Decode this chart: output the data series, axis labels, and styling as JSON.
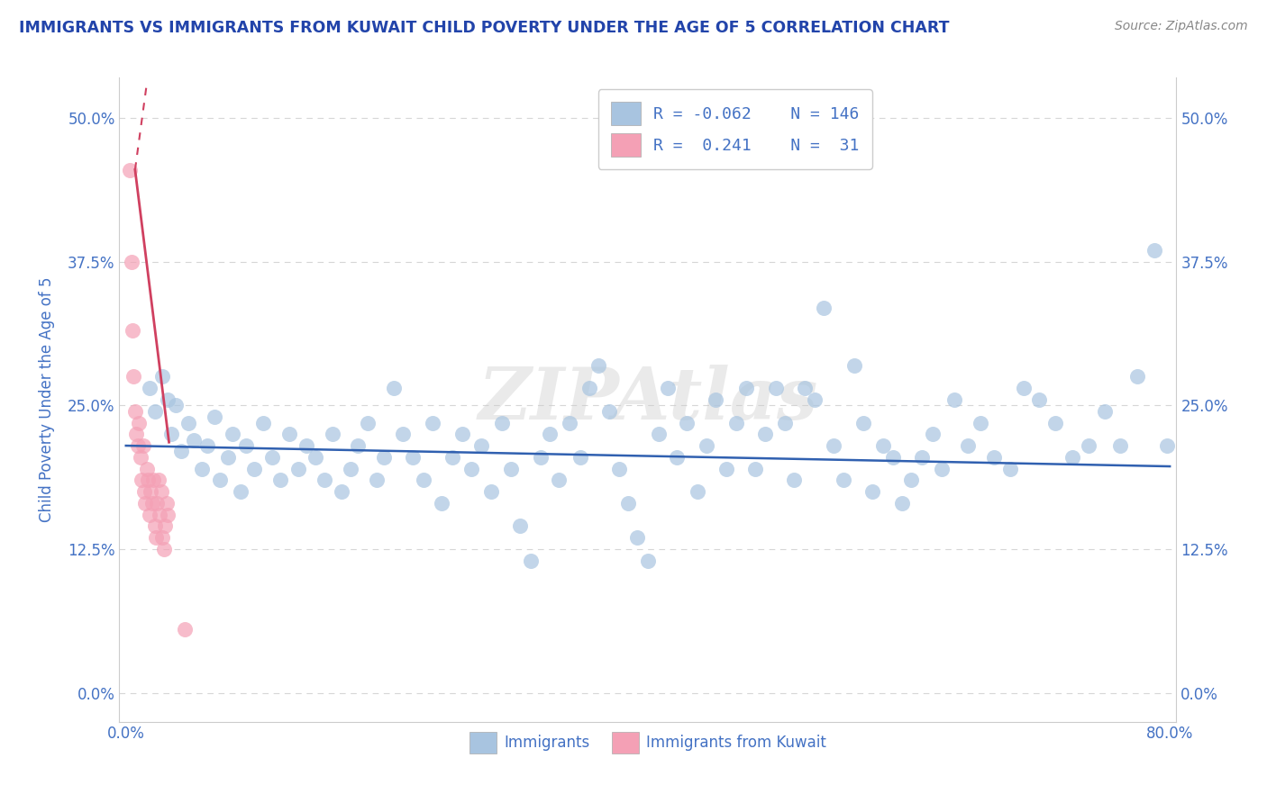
{
  "title": "IMMIGRANTS VS IMMIGRANTS FROM KUWAIT CHILD POVERTY UNDER THE AGE OF 5 CORRELATION CHART",
  "source": "Source: ZipAtlas.com",
  "ylabel": "Child Poverty Under the Age of 5",
  "watermark": "ZIPAtlas",
  "blue_color": "#a8c4e0",
  "pink_color": "#f4a0b5",
  "trend_blue": "#3060b0",
  "trend_pink": "#d04060",
  "text_color": "#4472c4",
  "title_color": "#2244aa",
  "grid_color": "#cccccc",
  "xlim": [
    -0.005,
    0.805
  ],
  "ylim": [
    -0.025,
    0.535
  ],
  "yticks": [
    0.0,
    0.125,
    0.25,
    0.375,
    0.5
  ],
  "ytick_labels": [
    "0.0%",
    "12.5%",
    "25.0%",
    "37.5%",
    "50.0%"
  ],
  "xticks": [
    0.0,
    0.8
  ],
  "xtick_labels": [
    "0.0%",
    "80.0%"
  ],
  "blue_scatter_x": [
    0.018,
    0.022,
    0.028,
    0.032,
    0.035,
    0.038,
    0.042,
    0.048,
    0.052,
    0.058,
    0.062,
    0.068,
    0.072,
    0.078,
    0.082,
    0.088,
    0.092,
    0.098,
    0.105,
    0.112,
    0.118,
    0.125,
    0.132,
    0.138,
    0.145,
    0.152,
    0.158,
    0.165,
    0.172,
    0.178,
    0.185,
    0.192,
    0.198,
    0.205,
    0.212,
    0.22,
    0.228,
    0.235,
    0.242,
    0.25,
    0.258,
    0.265,
    0.272,
    0.28,
    0.288,
    0.295,
    0.302,
    0.31,
    0.318,
    0.325,
    0.332,
    0.34,
    0.348,
    0.355,
    0.362,
    0.37,
    0.378,
    0.385,
    0.392,
    0.4,
    0.408,
    0.415,
    0.422,
    0.43,
    0.438,
    0.445,
    0.452,
    0.46,
    0.468,
    0.475,
    0.482,
    0.49,
    0.498,
    0.505,
    0.512,
    0.52,
    0.528,
    0.535,
    0.542,
    0.55,
    0.558,
    0.565,
    0.572,
    0.58,
    0.588,
    0.595,
    0.602,
    0.61,
    0.618,
    0.625,
    0.635,
    0.645,
    0.655,
    0.665,
    0.678,
    0.688,
    0.7,
    0.712,
    0.725,
    0.738,
    0.75,
    0.762,
    0.775,
    0.788,
    0.798
  ],
  "blue_scatter_y": [
    0.265,
    0.245,
    0.275,
    0.255,
    0.225,
    0.25,
    0.21,
    0.235,
    0.22,
    0.195,
    0.215,
    0.24,
    0.185,
    0.205,
    0.225,
    0.175,
    0.215,
    0.195,
    0.235,
    0.205,
    0.185,
    0.225,
    0.195,
    0.215,
    0.205,
    0.185,
    0.225,
    0.175,
    0.195,
    0.215,
    0.235,
    0.185,
    0.205,
    0.265,
    0.225,
    0.205,
    0.185,
    0.235,
    0.165,
    0.205,
    0.225,
    0.195,
    0.215,
    0.175,
    0.235,
    0.195,
    0.145,
    0.115,
    0.205,
    0.225,
    0.185,
    0.235,
    0.205,
    0.265,
    0.285,
    0.245,
    0.195,
    0.165,
    0.135,
    0.115,
    0.225,
    0.265,
    0.205,
    0.235,
    0.175,
    0.215,
    0.255,
    0.195,
    0.235,
    0.265,
    0.195,
    0.225,
    0.265,
    0.235,
    0.185,
    0.265,
    0.255,
    0.335,
    0.215,
    0.185,
    0.285,
    0.235,
    0.175,
    0.215,
    0.205,
    0.165,
    0.185,
    0.205,
    0.225,
    0.195,
    0.255,
    0.215,
    0.235,
    0.205,
    0.195,
    0.265,
    0.255,
    0.235,
    0.205,
    0.215,
    0.245,
    0.215,
    0.275,
    0.385,
    0.215
  ],
  "pink_scatter_x": [
    0.003,
    0.004,
    0.005,
    0.006,
    0.007,
    0.008,
    0.009,
    0.01,
    0.011,
    0.012,
    0.013,
    0.014,
    0.015,
    0.016,
    0.017,
    0.018,
    0.019,
    0.02,
    0.021,
    0.022,
    0.023,
    0.024,
    0.025,
    0.026,
    0.027,
    0.028,
    0.029,
    0.03,
    0.031,
    0.032,
    0.045
  ],
  "pink_scatter_y": [
    0.455,
    0.375,
    0.315,
    0.275,
    0.245,
    0.225,
    0.215,
    0.235,
    0.205,
    0.185,
    0.215,
    0.175,
    0.165,
    0.195,
    0.185,
    0.155,
    0.175,
    0.165,
    0.185,
    0.145,
    0.135,
    0.165,
    0.185,
    0.155,
    0.175,
    0.135,
    0.125,
    0.145,
    0.165,
    0.155,
    0.055
  ],
  "blue_trend_x": [
    0.0,
    0.8
  ],
  "blue_trend_y": [
    0.215,
    0.197
  ],
  "pink_trend_x_start": 0.0,
  "pink_trend_x_end": 0.038,
  "pink_trend_y_start": 0.5,
  "pink_trend_y_end": 0.218
}
